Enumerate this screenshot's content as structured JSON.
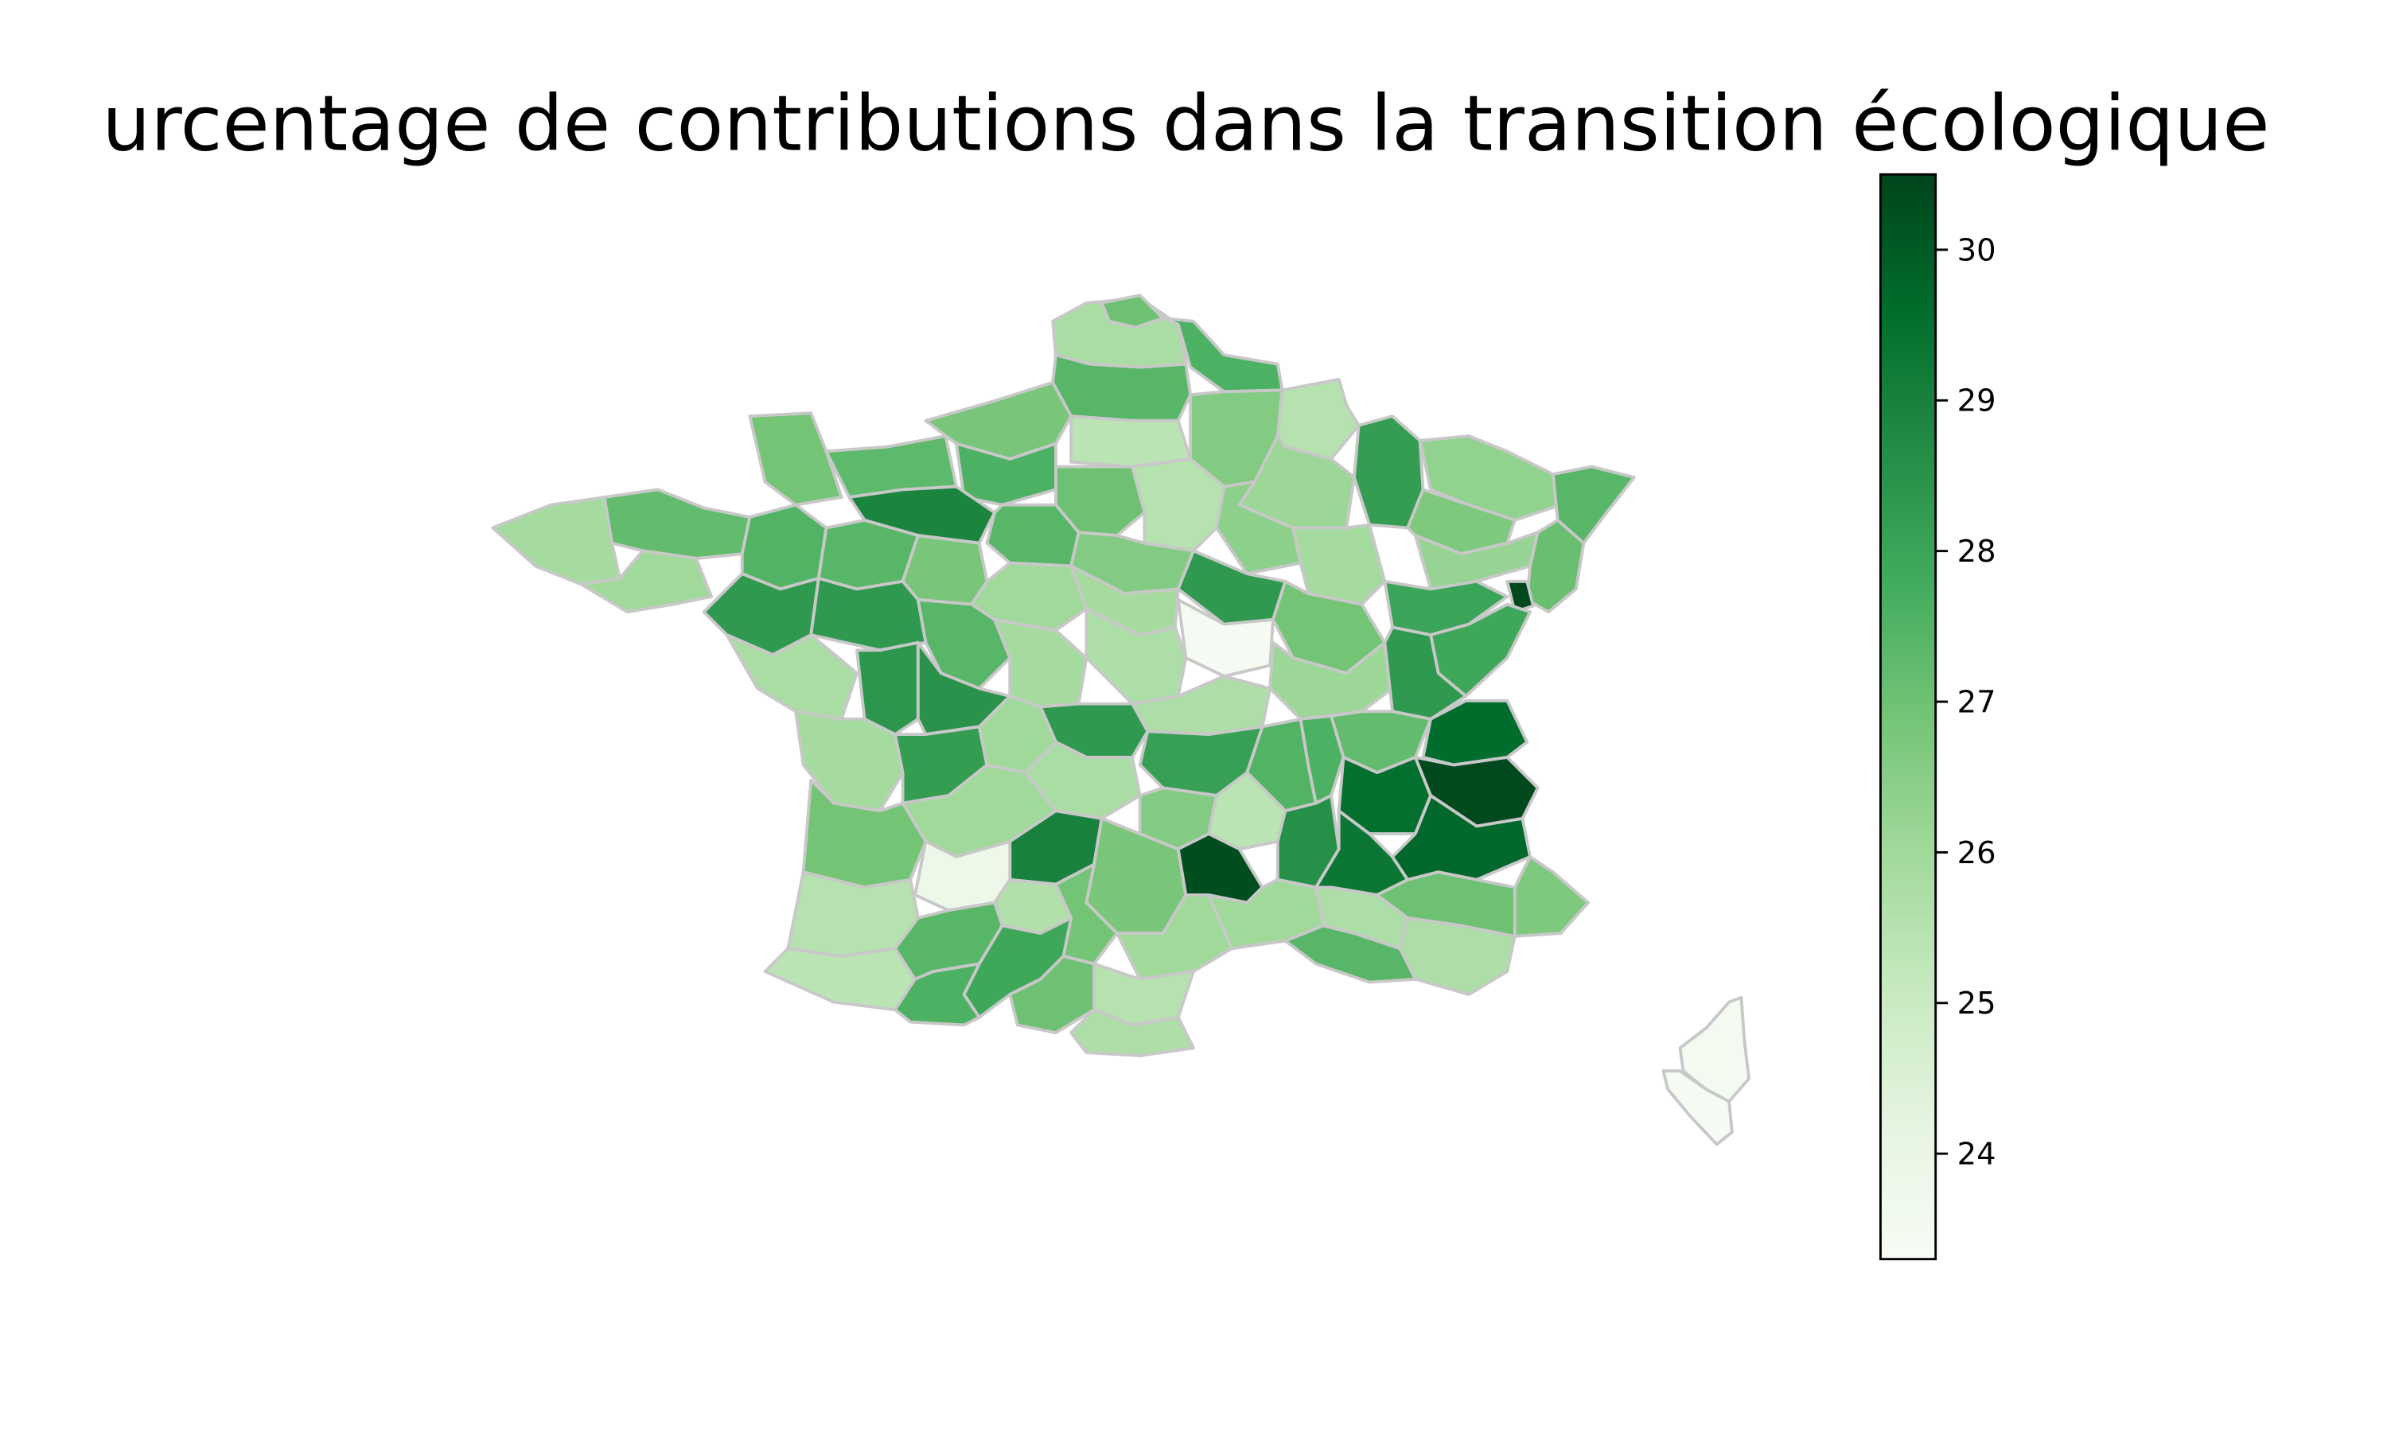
{
  "title": "urcentage de contributions dans la transition écologique",
  "colors": {
    "background": "#ffffff",
    "border": "#c8c8c8",
    "text": "#000000",
    "scale": [
      "#f7fcf5",
      "#e5f5e0",
      "#c7e9c0",
      "#a1d99b",
      "#74c476",
      "#41ab5d",
      "#238b45",
      "#006d2c",
      "#00441b"
    ]
  },
  "chart_data": {
    "type": "choropleth",
    "title": "urcentage de contributions dans la transition écologique",
    "colorbar": {
      "min": 23.3,
      "max": 30.5,
      "ticks": [
        24,
        25,
        26,
        27,
        28,
        29,
        30
      ],
      "tick_labels": [
        "24",
        "25",
        "26",
        "27",
        "28",
        "29",
        "30"
      ],
      "colormap": "Greens"
    },
    "regions": [
      {
        "id": "pas-de-calais",
        "value": 25.8
      },
      {
        "id": "nord",
        "value": 27.0
      },
      {
        "id": "nord-east",
        "value": 27.6
      },
      {
        "id": "somme",
        "value": 27.4
      },
      {
        "id": "aisne",
        "value": 26.6
      },
      {
        "id": "ardennes",
        "value": 25.5
      },
      {
        "id": "seine-maritime",
        "value": 26.8
      },
      {
        "id": "oise",
        "value": 25.4
      },
      {
        "id": "marne",
        "value": 26.1
      },
      {
        "id": "meuse",
        "value": 28.2
      },
      {
        "id": "moselle",
        "value": 26.3
      },
      {
        "id": "bas-rhin",
        "value": 27.4
      },
      {
        "id": "manche",
        "value": 26.9
      },
      {
        "id": "calvados",
        "value": 27.3
      },
      {
        "id": "eure",
        "value": 27.6
      },
      {
        "id": "paris-region",
        "value": 27.0
      },
      {
        "id": "seine-et-marne",
        "value": 25.5
      },
      {
        "id": "aube",
        "value": 26.4
      },
      {
        "id": "haute-marne",
        "value": 25.9
      },
      {
        "id": "meurthe-et-moselle",
        "value": 26.7
      },
      {
        "id": "vosges",
        "value": 26.2
      },
      {
        "id": "haut-rhin",
        "value": 27.1
      },
      {
        "id": "territoire-de-belfort",
        "value": 30.4
      },
      {
        "id": "orne",
        "value": 28.9
      },
      {
        "id": "eure-et-loir",
        "value": 27.4
      },
      {
        "id": "loiret",
        "value": 26.6
      },
      {
        "id": "yonne",
        "value": 28.3
      },
      {
        "id": "cote-d-or",
        "value": 26.9
      },
      {
        "id": "haute-saone",
        "value": 28.0
      },
      {
        "id": "doubs",
        "value": 27.9
      },
      {
        "id": "finistere",
        "value": 25.9
      },
      {
        "id": "cotes-d-armor",
        "value": 27.2
      },
      {
        "id": "ille-et-vilaine",
        "value": 27.5
      },
      {
        "id": "mayenne",
        "value": 27.4
      },
      {
        "id": "sarthe",
        "value": 26.8
      },
      {
        "id": "loir-et-cher",
        "value": 26.0
      },
      {
        "id": "cher-north",
        "value": 25.9
      },
      {
        "id": "nievre",
        "value": 23.4
      },
      {
        "id": "saone-et-loire",
        "value": 26.1
      },
      {
        "id": "jura",
        "value": 28.3
      },
      {
        "id": "morbihan",
        "value": 26.0
      },
      {
        "id": "loire-atlantique",
        "value": 28.3
      },
      {
        "id": "maine-et-loire",
        "value": 28.3
      },
      {
        "id": "indre-et-loire",
        "value": 27.4
      },
      {
        "id": "indre",
        "value": 25.9
      },
      {
        "id": "cher",
        "value": 25.7
      },
      {
        "id": "allier",
        "value": 25.7
      },
      {
        "id": "vendee",
        "value": 25.8
      },
      {
        "id": "deux-sevres",
        "value": 28.4
      },
      {
        "id": "vienne",
        "value": 28.5
      },
      {
        "id": "creuse",
        "value": 28.3
      },
      {
        "id": "puy-de-dome",
        "value": 28.1
      },
      {
        "id": "loire",
        "value": 27.5
      },
      {
        "id": "rhone",
        "value": 27.6
      },
      {
        "id": "ain",
        "value": 27.2
      },
      {
        "id": "haute-savoie",
        "value": 29.6
      },
      {
        "id": "charente-maritime",
        "value": 25.9
      },
      {
        "id": "charente",
        "value": 28.2
      },
      {
        "id": "haute-vienne",
        "value": 26.0
      },
      {
        "id": "correze",
        "value": 25.8
      },
      {
        "id": "cantal",
        "value": 26.6
      },
      {
        "id": "haute-loire",
        "value": 25.4
      },
      {
        "id": "ardeche",
        "value": 28.6
      },
      {
        "id": "isere",
        "value": 29.5
      },
      {
        "id": "savoie",
        "value": 30.4
      },
      {
        "id": "gironde",
        "value": 26.9
      },
      {
        "id": "dordogne",
        "value": 26.0
      },
      {
        "id": "lot",
        "value": 29.0
      },
      {
        "id": "aveyron",
        "value": 26.8
      },
      {
        "id": "lozere",
        "value": 30.3
      },
      {
        "id": "gard",
        "value": 26.0
      },
      {
        "id": "drome",
        "value": 29.3
      },
      {
        "id": "hautes-alpes",
        "value": 29.7
      },
      {
        "id": "landes",
        "value": 25.5
      },
      {
        "id": "lot-et-garonne",
        "value": 23.8
      },
      {
        "id": "tarn-et-garonne",
        "value": 25.6
      },
      {
        "id": "tarn",
        "value": 26.9
      },
      {
        "id": "herault",
        "value": 26.0
      },
      {
        "id": "bouches-du-rhone",
        "value": 27.4
      },
      {
        "id": "vaucluse",
        "value": 25.7
      },
      {
        "id": "var",
        "value": 25.7
      },
      {
        "id": "alpes-de-haute-provence",
        "value": 27.0
      },
      {
        "id": "alpes-maritimes",
        "value": 26.7
      },
      {
        "id": "pyrenees-atlantiques",
        "value": 25.4
      },
      {
        "id": "gers",
        "value": 27.4
      },
      {
        "id": "haute-garonne",
        "value": 27.9
      },
      {
        "id": "ariege",
        "value": 27.0
      },
      {
        "id": "aude",
        "value": 25.5
      },
      {
        "id": "hautes-pyrenees",
        "value": 27.6
      },
      {
        "id": "pyrenees-orientales",
        "value": 25.7
      },
      {
        "id": "haute-corse",
        "value": 23.5
      },
      {
        "id": "corse-du-sud",
        "value": 23.4
      }
    ]
  }
}
